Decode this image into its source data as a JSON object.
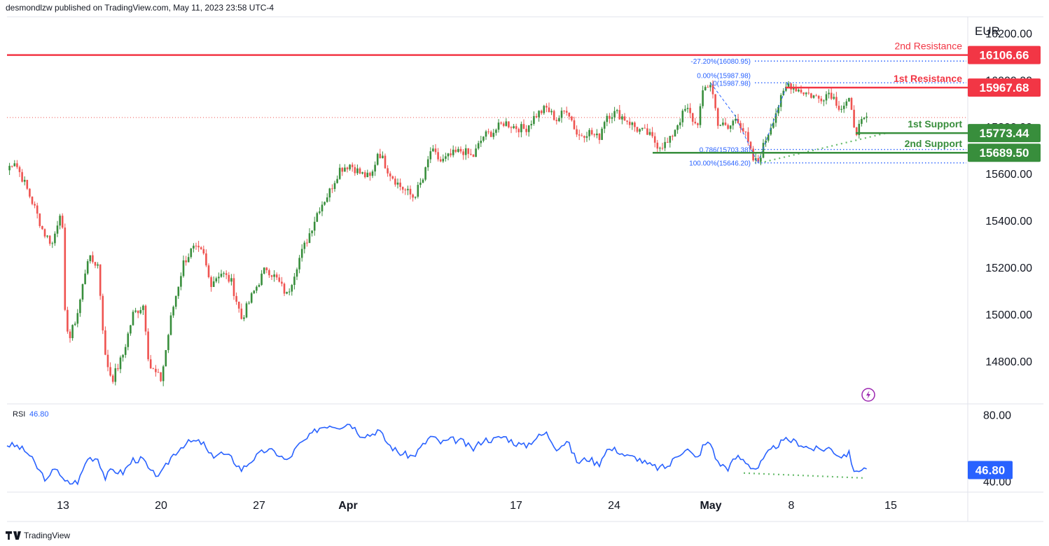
{
  "header": {
    "publish_text": "desmondlzw published on TradingView.com, May 11, 2023 23:58 UTC-4"
  },
  "footer": {
    "brand": "TradingView"
  },
  "colors": {
    "up": "#388e3c",
    "down": "#ef5350",
    "resistance": "#f23645",
    "support": "#388e3c",
    "rsi": "#2962ff",
    "dotted_green": "#66bb6a",
    "fib": "#2962ff",
    "axis_text": "#131722"
  },
  "chart_data": [
    {
      "type": "candlestick",
      "currency": "EUR",
      "ylim": [
        14620,
        16270
      ],
      "yticks": [
        14800,
        15000,
        15200,
        15400,
        15600
      ],
      "ytick_labels": [
        "14800.00",
        "15000.00",
        "15200.00",
        "15400.00",
        "15600.00"
      ],
      "partial_tick_labels": [
        {
          "value": 16200,
          "label": "16200.00"
        },
        {
          "value": 16000,
          "label": "16000.00"
        },
        {
          "value": 15800,
          "label": "15800.00"
        }
      ],
      "xrange": [
        0,
        1380
      ],
      "x_ticks": [
        {
          "x": 90,
          "label": "13"
        },
        {
          "x": 230,
          "label": "20"
        },
        {
          "x": 370,
          "label": "27"
        },
        {
          "x": 497,
          "label": "Apr",
          "bold": true
        },
        {
          "x": 737,
          "label": "17"
        },
        {
          "x": 877,
          "label": "24"
        },
        {
          "x": 1015,
          "label": "May",
          "bold": true
        },
        {
          "x": 1130,
          "label": "8"
        },
        {
          "x": 1272,
          "label": "15"
        }
      ],
      "last_price": 15840,
      "levels": [
        {
          "name": "2nd Resistance",
          "value": 16106.66,
          "label": "16106.66",
          "type": "resistance",
          "x_start": 10,
          "bold": false
        },
        {
          "name": "1st Resistance",
          "value": 15967.68,
          "label": "15967.68",
          "type": "resistance",
          "x_start": 1122,
          "bold": true
        },
        {
          "name": "1st Support",
          "value": 15773.44,
          "label": "15773.44",
          "type": "support",
          "x_start": 1222,
          "bold": true
        },
        {
          "name": "2nd Support",
          "value": 15689.5,
          "label": "15689.50",
          "type": "support",
          "x_start": 932,
          "bold": true
        }
      ],
      "fibonacci": [
        {
          "label": "-27.20%(16080.95)",
          "value": 16080.95
        },
        {
          "label": "0(15987.98)",
          "value": 15987.98
        },
        {
          "label": "0.00%(15987.98)",
          "value": 15987.98
        },
        {
          "label": "0.786(15703.38)",
          "value": 15703.38
        },
        {
          "label": "100.00%(15646.20)",
          "value": 15646.2
        }
      ],
      "fib_x_range": [
        1078,
        1380
      ],
      "trendline": {
        "x1": 1085,
        "v1": 15646,
        "x2": 1268,
        "v2": 15775
      },
      "zigzag": [
        [
          1015,
          15987
        ],
        [
          1050,
          15846
        ],
        [
          1082,
          15646
        ],
        [
          1125,
          15988
        ]
      ],
      "key_points": [
        [
          10,
          15615
        ],
        [
          20,
          15660
        ],
        [
          35,
          15560
        ],
        [
          50,
          15450
        ],
        [
          62,
          15350
        ],
        [
          75,
          15300
        ],
        [
          88,
          15470
        ],
        [
          93,
          14980
        ],
        [
          100,
          14900
        ],
        [
          112,
          15020
        ],
        [
          125,
          15240
        ],
        [
          140,
          15210
        ],
        [
          150,
          14820
        ],
        [
          160,
          14720
        ],
        [
          175,
          14820
        ],
        [
          190,
          15000
        ],
        [
          205,
          15040
        ],
        [
          213,
          14780
        ],
        [
          230,
          14720
        ],
        [
          245,
          15000
        ],
        [
          262,
          15220
        ],
        [
          275,
          15280
        ],
        [
          290,
          15260
        ],
        [
          300,
          15130
        ],
        [
          315,
          15180
        ],
        [
          330,
          15140
        ],
        [
          345,
          14980
        ],
        [
          360,
          15080
        ],
        [
          380,
          15200
        ],
        [
          395,
          15150
        ],
        [
          410,
          15080
        ],
        [
          425,
          15220
        ],
        [
          440,
          15330
        ],
        [
          455,
          15450
        ],
        [
          470,
          15520
        ],
        [
          485,
          15620
        ],
        [
          500,
          15640
        ],
        [
          515,
          15600
        ],
        [
          530,
          15580
        ],
        [
          540,
          15700
        ],
        [
          555,
          15610
        ],
        [
          570,
          15550
        ],
        [
          590,
          15500
        ],
        [
          605,
          15580
        ],
        [
          615,
          15700
        ],
        [
          630,
          15650
        ],
        [
          645,
          15680
        ],
        [
          660,
          15700
        ],
        [
          675,
          15670
        ],
        [
          690,
          15760
        ],
        [
          705,
          15780
        ],
        [
          720,
          15820
        ],
        [
          735,
          15800
        ],
        [
          750,
          15790
        ],
        [
          765,
          15850
        ],
        [
          780,
          15880
        ],
        [
          795,
          15830
        ],
        [
          810,
          15880
        ],
        [
          825,
          15760
        ],
        [
          840,
          15780
        ],
        [
          855,
          15750
        ],
        [
          865,
          15850
        ],
        [
          880,
          15860
        ],
        [
          895,
          15830
        ],
        [
          910,
          15790
        ],
        [
          925,
          15770
        ],
        [
          940,
          15720
        ],
        [
          955,
          15730
        ],
        [
          965,
          15800
        ],
        [
          980,
          15880
        ],
        [
          995,
          15800
        ],
        [
          1005,
          15960
        ],
        [
          1015,
          15987
        ],
        [
          1025,
          15820
        ],
        [
          1040,
          15790
        ],
        [
          1052,
          15846
        ],
        [
          1065,
          15760
        ],
        [
          1075,
          15660
        ],
        [
          1082,
          15646
        ],
        [
          1095,
          15760
        ],
        [
          1110,
          15880
        ],
        [
          1125,
          15985
        ],
        [
          1140,
          15960
        ],
        [
          1155,
          15940
        ],
        [
          1170,
          15920
        ],
        [
          1185,
          15950
        ],
        [
          1200,
          15880
        ],
        [
          1212,
          15910
        ],
        [
          1222,
          15780
        ],
        [
          1232,
          15820
        ],
        [
          1240,
          15840
        ]
      ]
    },
    {
      "type": "line",
      "name": "RSI",
      "label": "RSI",
      "current": 46.8,
      "current_label": "46.80",
      "ylim": [
        34,
        86
      ],
      "yticks": [
        80
      ],
      "ytick_labels": [
        "80.00"
      ],
      "partial_tick_labels": [
        {
          "value": 40,
          "label": "40.00"
        }
      ],
      "points": [
        [
          10,
          62
        ],
        [
          25,
          61
        ],
        [
          40,
          57
        ],
        [
          55,
          47
        ],
        [
          68,
          40
        ],
        [
          80,
          50
        ],
        [
          90,
          40
        ],
        [
          100,
          39
        ],
        [
          112,
          40
        ],
        [
          125,
          54
        ],
        [
          140,
          54
        ],
        [
          150,
          42
        ],
        [
          160,
          47
        ],
        [
          175,
          45
        ],
        [
          190,
          53
        ],
        [
          205,
          53
        ],
        [
          215,
          45
        ],
        [
          230,
          44
        ],
        [
          245,
          55
        ],
        [
          262,
          62
        ],
        [
          275,
          64
        ],
        [
          290,
          63
        ],
        [
          300,
          55
        ],
        [
          315,
          57
        ],
        [
          330,
          54
        ],
        [
          345,
          47
        ],
        [
          360,
          53
        ],
        [
          380,
          59
        ],
        [
          395,
          57
        ],
        [
          410,
          52
        ],
        [
          425,
          61
        ],
        [
          440,
          66
        ],
        [
          455,
          72
        ],
        [
          470,
          74
        ],
        [
          485,
          73
        ],
        [
          500,
          75
        ],
        [
          515,
          68
        ],
        [
          530,
          68
        ],
        [
          540,
          71
        ],
        [
          555,
          62
        ],
        [
          570,
          57
        ],
        [
          590,
          55
        ],
        [
          605,
          62
        ],
        [
          615,
          67
        ],
        [
          630,
          63
        ],
        [
          645,
          65
        ],
        [
          660,
          64
        ],
        [
          675,
          59
        ],
        [
          690,
          65
        ],
        [
          705,
          65
        ],
        [
          720,
          67
        ],
        [
          735,
          63
        ],
        [
          750,
          61
        ],
        [
          765,
          66
        ],
        [
          780,
          69
        ],
        [
          795,
          60
        ],
        [
          810,
          64
        ],
        [
          825,
          51
        ],
        [
          840,
          54
        ],
        [
          855,
          50
        ],
        [
          865,
          59
        ],
        [
          880,
          59
        ],
        [
          895,
          55
        ],
        [
          910,
          54
        ],
        [
          925,
          50
        ],
        [
          940,
          48
        ],
        [
          955,
          49
        ],
        [
          965,
          55
        ],
        [
          980,
          60
        ],
        [
          995,
          53
        ],
        [
          1005,
          62
        ],
        [
          1015,
          63
        ],
        [
          1025,
          51
        ],
        [
          1040,
          48
        ],
        [
          1052,
          55
        ],
        [
          1065,
          52
        ],
        [
          1075,
          48
        ],
        [
          1082,
          48
        ],
        [
          1095,
          56
        ],
        [
          1110,
          62
        ],
        [
          1125,
          65
        ],
        [
          1140,
          63
        ],
        [
          1155,
          60
        ],
        [
          1170,
          59
        ],
        [
          1185,
          60
        ],
        [
          1200,
          55
        ],
        [
          1212,
          57
        ],
        [
          1222,
          44
        ],
        [
          1232,
          49
        ],
        [
          1240,
          46.8
        ]
      ],
      "divergence_line": {
        "x1": 1062,
        "v1": 45,
        "x2": 1235,
        "v2": 42
      }
    }
  ]
}
